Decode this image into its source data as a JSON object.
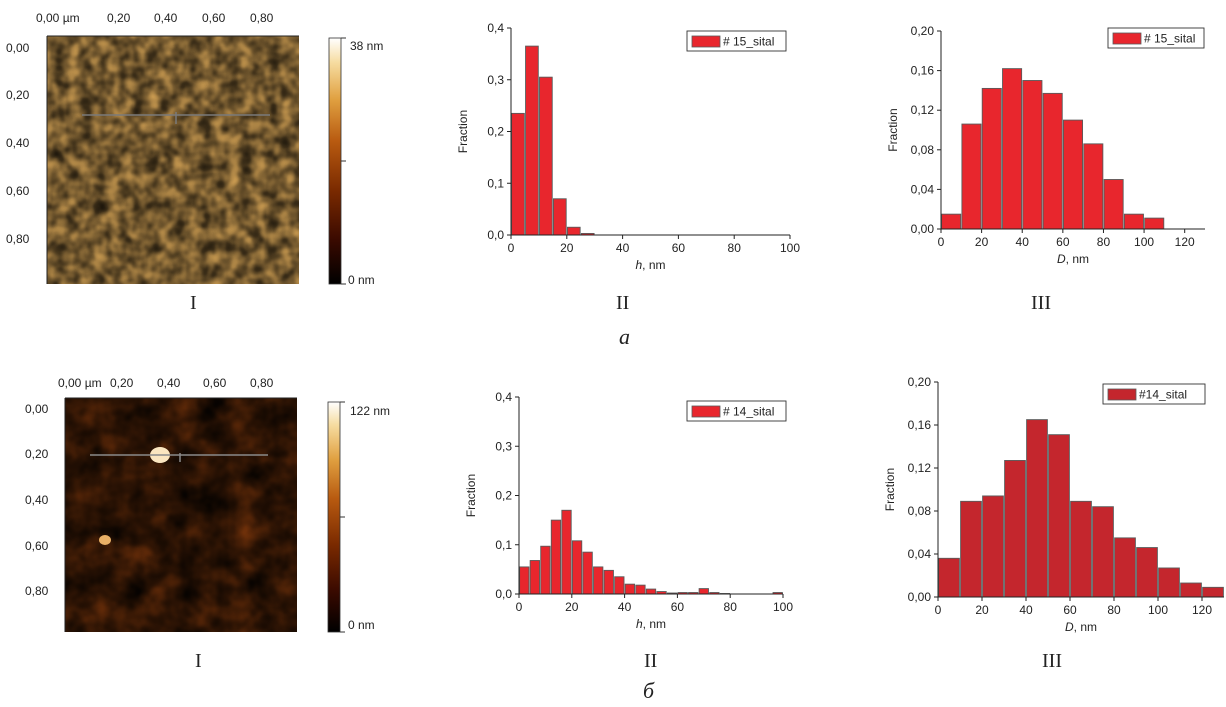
{
  "colors": {
    "bar_a": "#e8262d",
    "bar_b_hist_h": "#e8262d",
    "bar_b_hist_d": "#c4262d",
    "bar_edge": "#5a5a5a",
    "afm_colormap": [
      "#000000",
      "#3a0a00",
      "#7a2a00",
      "#b85a10",
      "#e0a040",
      "#f6dca0",
      "#ffffff"
    ]
  },
  "rows": [
    {
      "label": "а",
      "afm": {
        "panel_label": "I",
        "x_ticks": [
          "0,00 µm",
          "0,20",
          "0,40",
          "0,60",
          "0,80"
        ],
        "y_ticks": [
          "0,00",
          "0,20",
          "0,40",
          "0,60",
          "0,80"
        ],
        "scale_max": "38 nm",
        "scale_min": "0 nm",
        "texture": "grainy"
      },
      "charts": [
        {
          "panel_label": "II",
          "chart_data": {
            "type": "bar",
            "xlabel_italic": "h",
            "xlabel_rest": ", nm",
            "ylabel": "Fraction",
            "xlim": [
              0,
              100
            ],
            "ylim": [
              0,
              0.4
            ],
            "x_ticks": [
              0,
              20,
              40,
              60,
              80,
              100
            ],
            "y_ticks": [
              0,
              0.1,
              0.2,
              0.3,
              0.4
            ],
            "y_tick_labels": [
              "0,0",
              "0,1",
              "0,2",
              "0,3",
              "0,4"
            ],
            "bin_width": 5,
            "bin_starts": [
              0,
              5,
              10,
              15,
              20,
              25
            ],
            "values": [
              0.235,
              0.365,
              0.305,
              0.07,
              0.015,
              0.003
            ],
            "legend": "# 15_sital"
          }
        },
        {
          "panel_label": "III",
          "chart_data": {
            "type": "bar",
            "xlabel_italic": "D",
            "xlabel_rest": ", nm",
            "ylabel": "Fraction",
            "xlim": [
              0,
              130
            ],
            "ylim": [
              0,
              0.2
            ],
            "x_ticks": [
              0,
              20,
              40,
              60,
              80,
              100,
              120
            ],
            "y_ticks": [
              0,
              0.04,
              0.08,
              0.12,
              0.16,
              0.2
            ],
            "y_tick_labels": [
              "0,00",
              "0,04",
              "0,08",
              "0,12",
              "0,16",
              "0,20"
            ],
            "bin_width": 10,
            "bin_starts": [
              0,
              10,
              20,
              30,
              40,
              50,
              60,
              70,
              80,
              90,
              100
            ],
            "values": [
              0.015,
              0.106,
              0.142,
              0.162,
              0.15,
              0.137,
              0.11,
              0.086,
              0.05,
              0.015,
              0.011
            ],
            "legend": "# 15_sital"
          }
        }
      ]
    },
    {
      "label": "б",
      "afm": {
        "panel_label": "I",
        "x_ticks": [
          "0,00 µm",
          "0,20",
          "0,40",
          "0,60",
          "0,80"
        ],
        "y_ticks": [
          "0,00",
          "0,20",
          "0,40",
          "0,60",
          "0,80"
        ],
        "scale_max": "122 nm",
        "scale_min": "0 nm",
        "texture": "dark"
      },
      "charts": [
        {
          "panel_label": "II",
          "chart_data": {
            "type": "bar",
            "xlabel_italic": "h",
            "xlabel_rest": ", nm",
            "ylabel": "Fraction",
            "xlim": [
              0,
              100
            ],
            "ylim": [
              0,
              0.4
            ],
            "x_ticks": [
              0,
              20,
              40,
              60,
              80,
              100
            ],
            "y_ticks": [
              0,
              0.1,
              0.2,
              0.3,
              0.4
            ],
            "y_tick_labels": [
              "0,0",
              "0,1",
              "0,2",
              "0,3",
              "0,4"
            ],
            "bin_width": 4,
            "bin_starts": [
              0,
              4,
              8,
              12,
              16,
              20,
              24,
              28,
              32,
              36,
              40,
              44,
              48,
              52,
              56,
              60,
              64,
              68,
              72,
              76,
              80,
              84,
              88,
              92,
              96
            ],
            "values": [
              0.055,
              0.068,
              0.097,
              0.15,
              0.17,
              0.108,
              0.085,
              0.055,
              0.048,
              0.035,
              0.02,
              0.018,
              0.01,
              0.005,
              0.002,
              0.003,
              0.003,
              0.011,
              0.003,
              0.001,
              0.0,
              0.0,
              0.0,
              0.0,
              0.003
            ],
            "legend": "# 14_sital"
          }
        },
        {
          "panel_label": "III",
          "chart_data": {
            "type": "bar",
            "xlabel_italic": "D",
            "xlabel_rest": ", nm",
            "ylabel": "Fraction",
            "xlim": [
              0,
              130
            ],
            "ylim": [
              0,
              0.2
            ],
            "x_ticks": [
              0,
              20,
              40,
              60,
              80,
              100,
              120
            ],
            "y_ticks": [
              0,
              0.04,
              0.08,
              0.12,
              0.16,
              0.2
            ],
            "y_tick_labels": [
              "0,00",
              "0,04",
              "0,08",
              "0,12",
              "0,16",
              "0,20"
            ],
            "bin_width": 10,
            "bin_starts": [
              0,
              10,
              20,
              30,
              40,
              50,
              60,
              70,
              80,
              90,
              100,
              110,
              120
            ],
            "values": [
              0.036,
              0.089,
              0.094,
              0.127,
              0.165,
              0.151,
              0.089,
              0.084,
              0.055,
              0.046,
              0.027,
              0.013,
              0.009
            ],
            "legend": "#14_sital"
          }
        }
      ]
    }
  ]
}
